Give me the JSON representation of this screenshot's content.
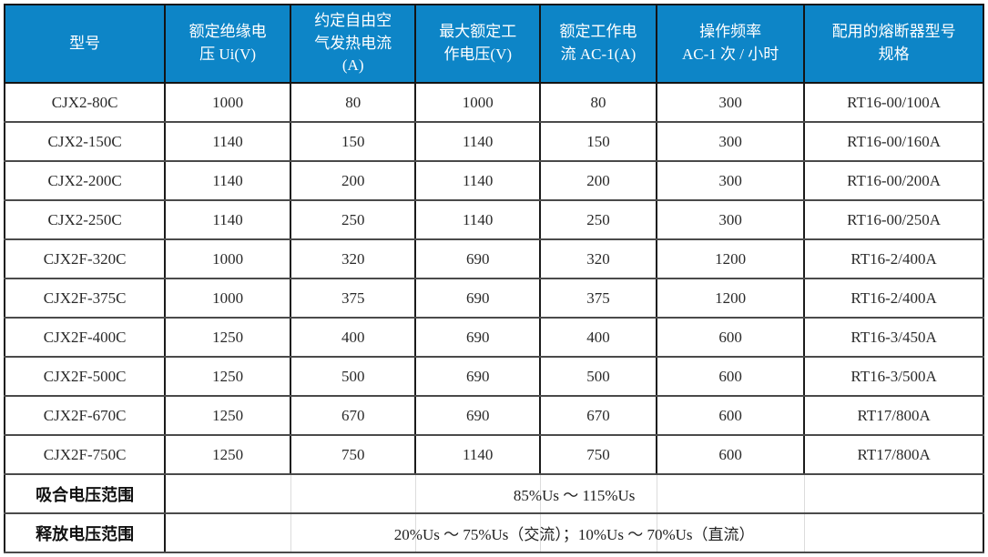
{
  "table": {
    "header_bg": "#0d85c7",
    "header_text_color": "#ffffff",
    "border_color": "#141414",
    "columns": [
      {
        "label": "型号"
      },
      {
        "label": "额定绝缘电\n压 Ui(V)"
      },
      {
        "label": "约定自由空\n气发热电流\n(A)"
      },
      {
        "label": "最大额定工\n作电压(V)"
      },
      {
        "label": "额定工作电\n流 AC-1(A)"
      },
      {
        "label": "操作频率\nAC-1 次 / 小时"
      },
      {
        "label": "配用的熔断器型号\n规格"
      }
    ],
    "rows": [
      [
        "CJX2-80C",
        "1000",
        "80",
        "1000",
        "80",
        "300",
        "RT16-00/100A"
      ],
      [
        "CJX2-150C",
        "1140",
        "150",
        "1140",
        "150",
        "300",
        "RT16-00/160A"
      ],
      [
        "CJX2-200C",
        "1140",
        "200",
        "1140",
        "200",
        "300",
        "RT16-00/200A"
      ],
      [
        "CJX2-250C",
        "1140",
        "250",
        "1140",
        "250",
        "300",
        "RT16-00/250A"
      ],
      [
        "CJX2F-320C",
        "1000",
        "320",
        "690",
        "320",
        "1200",
        "RT16-2/400A"
      ],
      [
        "CJX2F-375C",
        "1000",
        "375",
        "690",
        "375",
        "1200",
        "RT16-2/400A"
      ],
      [
        "CJX2F-400C",
        "1250",
        "400",
        "690",
        "400",
        "600",
        "RT16-3/450A"
      ],
      [
        "CJX2F-500C",
        "1250",
        "500",
        "690",
        "500",
        "600",
        "RT16-3/500A"
      ],
      [
        "CJX2F-670C",
        "1250",
        "670",
        "690",
        "670",
        "600",
        "RT17/800A"
      ],
      [
        "CJX2F-750C",
        "1250",
        "750",
        "1140",
        "750",
        "600",
        "RT17/800A"
      ]
    ],
    "footer_rows": [
      {
        "label": "吸合电压范围",
        "value": "85%Us ～ 115%Us"
      },
      {
        "label": "释放电压范围",
        "value": "20%Us ～ 75%Us（交流）；10%Us ～ 70%Us（直流）"
      }
    ]
  }
}
